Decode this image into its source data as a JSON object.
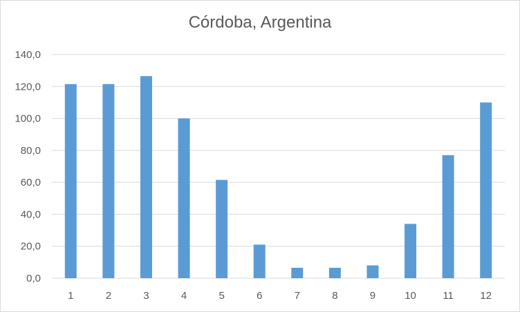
{
  "chart_data": {
    "type": "bar",
    "title": "Córdoba, Argentina",
    "xlabel": "",
    "ylabel": "",
    "categories": [
      "1",
      "2",
      "3",
      "4",
      "5",
      "6",
      "7",
      "8",
      "9",
      "10",
      "11",
      "12"
    ],
    "values": [
      121.5,
      121.5,
      126.5,
      100.0,
      61.5,
      21.0,
      6.5,
      6.5,
      8.0,
      34.0,
      77.0,
      110.0
    ],
    "ylim": [
      0,
      140
    ],
    "yticks": [
      "0,0",
      "20,0",
      "40,0",
      "60,0",
      "80,0",
      "100,0",
      "120,0",
      "140,0"
    ],
    "grid": true,
    "legend": "none",
    "colors": {
      "bar": "#5B9BD5",
      "grid": "#d9d9d9",
      "text": "#595959"
    }
  }
}
